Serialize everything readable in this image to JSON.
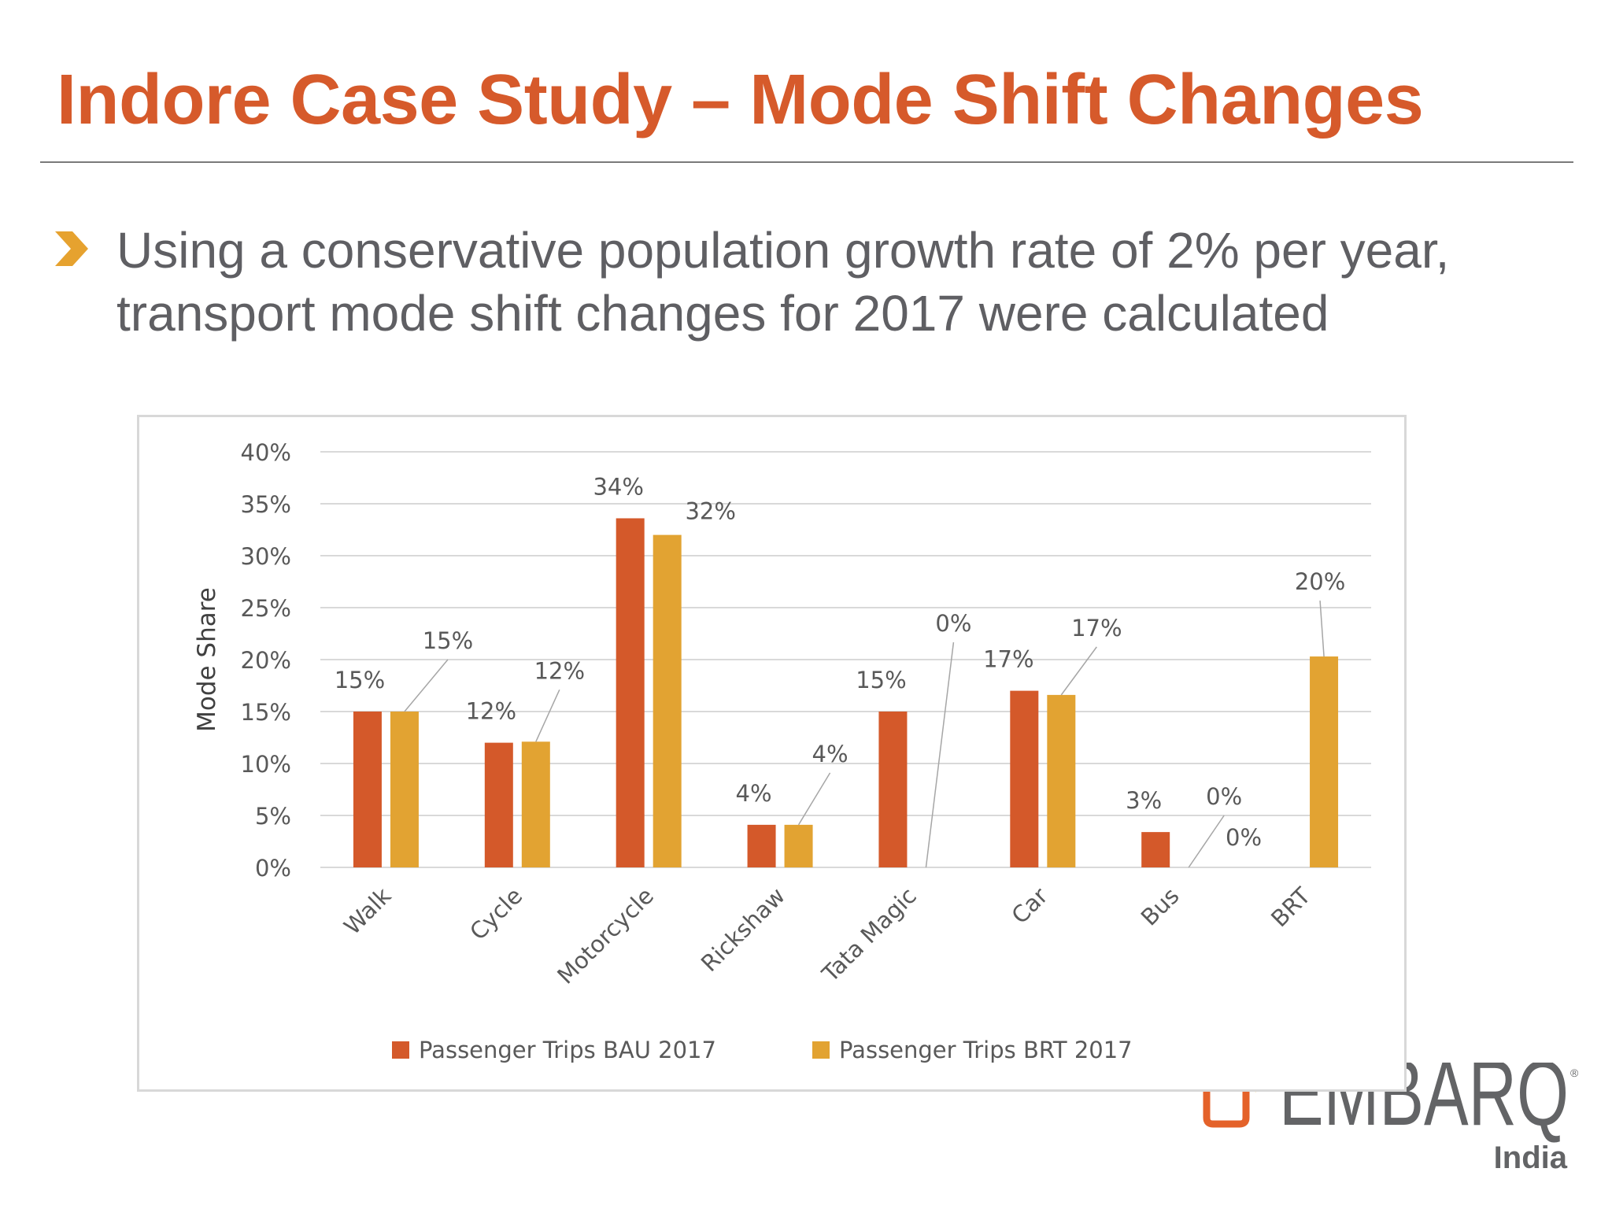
{
  "slide": {
    "title": "Indore Case Study – Mode Shift Changes",
    "bullet_icon": "chevron-right-icon",
    "bullet_lines": [
      "Using a conservative population growth rate of 2% per year,",
      "transport mode shift changes for 2017 were calculated"
    ],
    "logo": {
      "name": "EMBARQ",
      "sub": "India",
      "mark": "®"
    },
    "colors": {
      "title": "#D65A2B",
      "accent_arrow": "#E6A22F",
      "text": "#5f5f63"
    }
  },
  "chart_data": {
    "type": "bar",
    "title": "",
    "xlabel": "",
    "ylabel": "Mode Share",
    "ylim": [
      0,
      40
    ],
    "yticks": [
      0,
      5,
      10,
      15,
      20,
      25,
      30,
      35,
      40
    ],
    "ytick_labels": [
      "0%",
      "5%",
      "10%",
      "15%",
      "20%",
      "25%",
      "30%",
      "35%",
      "40%"
    ],
    "grid": true,
    "legend_position": "bottom",
    "categories": [
      "Walk",
      "Cycle",
      "Motorcycle",
      "Rickshaw",
      "Tata Magic",
      "Car",
      "Bus",
      "BRT"
    ],
    "series": [
      {
        "name": "Passenger Trips BAU 2017",
        "color": "#D4592A",
        "values": [
          15,
          12,
          33.6,
          4.1,
          15,
          17,
          3.4,
          0
        ],
        "labels": [
          "15%",
          "12%",
          "34%",
          "4%",
          "15%",
          "17%",
          "3%",
          "0%"
        ]
      },
      {
        "name": "Passenger Trips BRT 2017",
        "color": "#E2A332",
        "values": [
          15,
          12.1,
          32,
          4.1,
          0,
          16.6,
          0,
          20.3
        ],
        "labels": [
          "15%",
          "12%",
          "32%",
          "4%",
          "0%",
          "17%",
          "0%",
          "20%"
        ]
      }
    ]
  }
}
